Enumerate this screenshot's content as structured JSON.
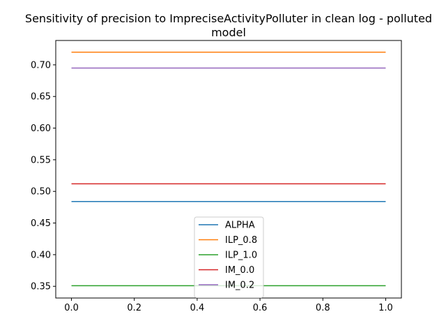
{
  "chart_data": {
    "type": "line",
    "title": "Sensitivity of precision to ImpreciseActivityPolluter in clean log - polluted model",
    "xlabel": "",
    "ylabel": "",
    "xlim": [
      -0.05,
      1.05
    ],
    "ylim": [
      0.3315,
      0.7385
    ],
    "xticks": [
      0.0,
      0.2,
      0.4,
      0.6,
      0.8,
      1.0
    ],
    "xtick_labels": [
      "0.0",
      "0.2",
      "0.4",
      "0.6",
      "0.8",
      "1.0"
    ],
    "yticks": [
      0.35,
      0.4,
      0.45,
      0.5,
      0.55,
      0.6,
      0.65,
      0.7
    ],
    "ytick_labels": [
      "0.35",
      "0.40",
      "0.45",
      "0.50",
      "0.55",
      "0.60",
      "0.65",
      "0.70"
    ],
    "grid": false,
    "legend_position": "lower-center",
    "x": [
      0.0,
      1.0
    ],
    "series": [
      {
        "name": "ALPHA",
        "values": [
          0.484,
          0.484
        ],
        "color": "#1f77b4"
      },
      {
        "name": "ILP_0.8",
        "values": [
          0.72,
          0.72
        ],
        "color": "#ff7f0e"
      },
      {
        "name": "ILP_1.0",
        "values": [
          0.351,
          0.351
        ],
        "color": "#2ca02c"
      },
      {
        "name": "IM_0.0",
        "values": [
          0.512,
          0.512
        ],
        "color": "#d62728"
      },
      {
        "name": "IM_0.2",
        "values": [
          0.695,
          0.695
        ],
        "color": "#9467bd"
      }
    ]
  }
}
